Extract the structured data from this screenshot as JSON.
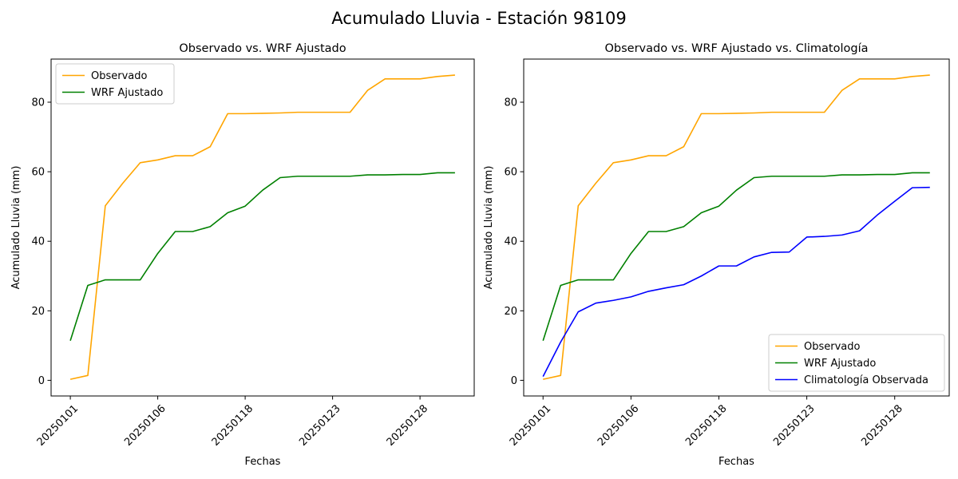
{
  "figure": {
    "title": "Acumulado Lluvia - Estación 98109"
  },
  "colors": {
    "observado": "#ffa500",
    "wrf": "#008000",
    "climatologia": "#0000ff"
  },
  "chart_data": [
    {
      "type": "line",
      "title": "Observado vs. WRF Ajustado",
      "xlabel": "Fechas",
      "ylabel": "Acumulado Lluvia (mm)",
      "ylim": [
        -4.5,
        92.4
      ],
      "yticks": [
        0,
        20,
        40,
        60,
        80
      ],
      "xticks": [
        {
          "index": 0,
          "label": "20250101"
        },
        {
          "index": 5,
          "label": "20250106"
        },
        {
          "index": 10,
          "label": "20250118"
        },
        {
          "index": 15,
          "label": "20250123"
        },
        {
          "index": 20,
          "label": "20250128"
        }
      ],
      "legend_position": "upper-left",
      "series": [
        {
          "name": "Observado",
          "color": "#ffa500",
          "values": [
            0.3,
            1.4,
            50.2,
            56.7,
            62.6,
            63.4,
            64.6,
            64.6,
            67.2,
            76.7,
            76.7,
            76.8,
            76.9,
            77.1,
            77.1,
            77.1,
            77.1,
            83.4,
            86.7,
            86.7,
            86.7,
            87.4,
            87.8
          ]
        },
        {
          "name": "WRF Ajustado",
          "color": "#008000",
          "values": [
            11.4,
            27.3,
            28.9,
            28.9,
            28.9,
            36.5,
            42.8,
            42.8,
            44.2,
            48.2,
            50.1,
            54.7,
            58.3,
            58.7,
            58.7,
            58.7,
            58.7,
            59.1,
            59.1,
            59.2,
            59.2,
            59.7,
            59.7
          ]
        }
      ]
    },
    {
      "type": "line",
      "title": "Observado vs. WRF Ajustado vs. Climatología",
      "xlabel": "Fechas",
      "ylabel": "Acumulado Lluvia (mm)",
      "ylim": [
        -4.5,
        92.4
      ],
      "yticks": [
        0,
        20,
        40,
        60,
        80
      ],
      "xticks": [
        {
          "index": 0,
          "label": "20250101"
        },
        {
          "index": 5,
          "label": "20250106"
        },
        {
          "index": 10,
          "label": "20250118"
        },
        {
          "index": 15,
          "label": "20250123"
        },
        {
          "index": 20,
          "label": "20250128"
        }
      ],
      "legend_position": "lower-right",
      "series": [
        {
          "name": "Observado",
          "color": "#ffa500",
          "values": [
            0.3,
            1.4,
            50.2,
            56.7,
            62.6,
            63.4,
            64.6,
            64.6,
            67.2,
            76.7,
            76.7,
            76.8,
            76.9,
            77.1,
            77.1,
            77.1,
            77.1,
            83.4,
            86.7,
            86.7,
            86.7,
            87.4,
            87.8
          ]
        },
        {
          "name": "WRF Ajustado",
          "color": "#008000",
          "values": [
            11.4,
            27.3,
            28.9,
            28.9,
            28.9,
            36.5,
            42.8,
            42.8,
            44.2,
            48.2,
            50.1,
            54.7,
            58.3,
            58.7,
            58.7,
            58.7,
            58.7,
            59.1,
            59.1,
            59.2,
            59.2,
            59.7,
            59.7
          ]
        },
        {
          "name": "Climatología Observada",
          "color": "#0000ff",
          "values": [
            1.1,
            11.0,
            19.7,
            22.2,
            23.0,
            24.0,
            25.6,
            26.6,
            27.5,
            30.0,
            32.9,
            32.9,
            35.5,
            36.8,
            36.9,
            41.2,
            41.4,
            41.8,
            43.0,
            47.5,
            51.5,
            55.4,
            55.5
          ]
        }
      ]
    }
  ]
}
